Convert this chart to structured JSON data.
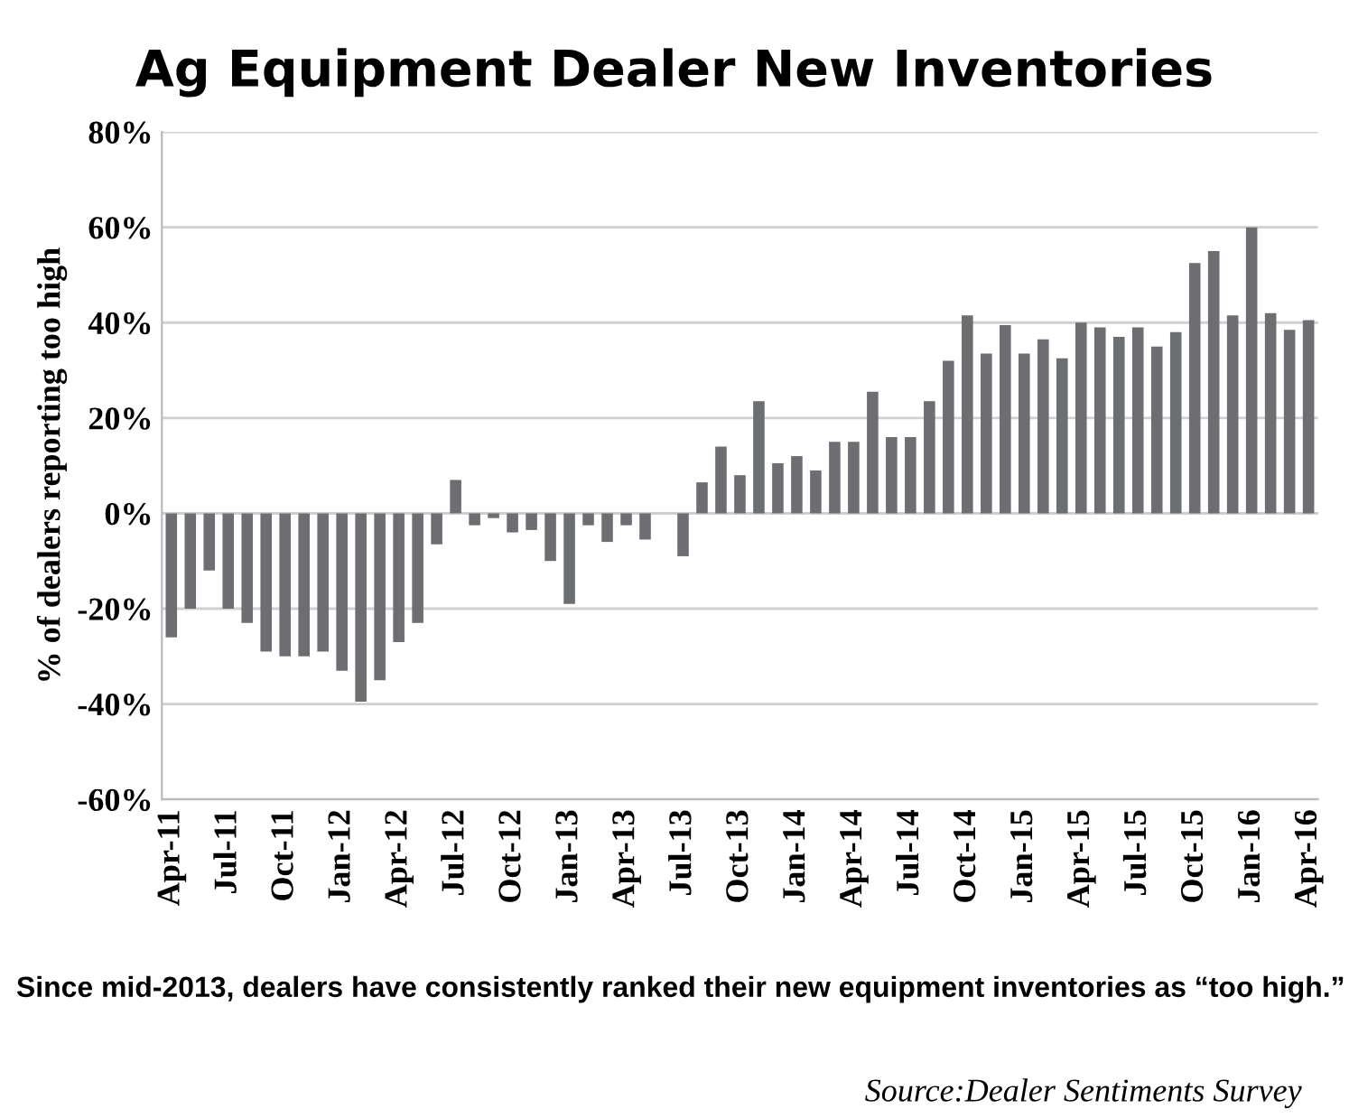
{
  "chart_data": {
    "type": "bar",
    "title": "Ag Equipment Dealer New Inventories",
    "ylabel": "% of dealers reporting too high",
    "categories": [
      "Apr-11",
      null,
      null,
      "Jul-11",
      null,
      null,
      "Oct-11",
      null,
      null,
      "Jan-12",
      null,
      null,
      "Apr-12",
      null,
      null,
      "Jul-12",
      null,
      null,
      "Oct-12",
      null,
      null,
      "Jan-13",
      null,
      null,
      "Apr-13",
      null,
      null,
      "Jul-13",
      null,
      null,
      "Oct-13",
      null,
      null,
      "Jan-14",
      null,
      null,
      "Apr-14",
      null,
      null,
      "Jul-14",
      null,
      null,
      "Oct-14",
      null,
      null,
      "Jan-15",
      null,
      null,
      "Apr-15",
      null,
      null,
      "Jul-15",
      null,
      null,
      "Oct-15",
      null,
      null,
      "Jan-16",
      null,
      null,
      "Apr-16"
    ],
    "values": [
      -26,
      -20,
      -12,
      -20,
      -23,
      -29,
      -30,
      -30,
      -29,
      -33,
      -39.5,
      -35,
      -27,
      -23,
      -6.5,
      7,
      -2.5,
      -1,
      -4,
      -3.5,
      -10,
      -19,
      -2.5,
      -6,
      -2.5,
      -5.5,
      null,
      -9,
      6.5,
      14,
      8,
      23.5,
      10.5,
      12,
      9,
      15,
      15,
      25.5,
      16,
      16,
      23.5,
      32,
      41.5,
      33.5,
      39.5,
      33.5,
      36.5,
      32.5,
      40,
      39,
      37,
      39,
      35,
      38,
      52.5,
      55,
      41.5,
      60,
      42,
      38.5,
      40.5
    ],
    "color": "#6d6e71",
    "ylim": [
      -60,
      80
    ],
    "yticks": [
      {
        "value": -60,
        "label": "-60%"
      },
      {
        "value": -40,
        "label": "-40%"
      },
      {
        "value": -20,
        "label": "-20%"
      },
      {
        "value": 0,
        "label": "0%"
      },
      {
        "value": 20,
        "label": "20%"
      },
      {
        "value": 40,
        "label": "40%"
      },
      {
        "value": 60,
        "label": "60%"
      },
      {
        "value": 80,
        "label": "80%"
      }
    ],
    "grid": "y",
    "annotations": [
      "Since mid-2013, dealers have consistently ranked their new equipment inventories as “too high.”",
      "Source:Dealer Sentiments Survey"
    ]
  }
}
